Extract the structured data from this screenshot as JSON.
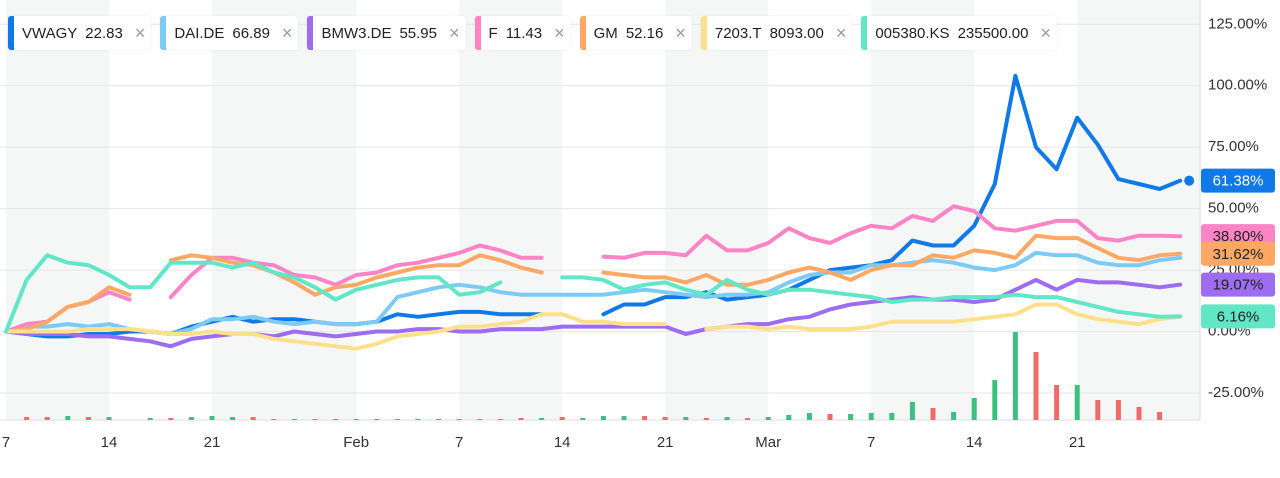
{
  "chart_data": {
    "type": "line",
    "categories": [
      "7",
      null,
      null,
      null,
      null,
      "14",
      null,
      null,
      null,
      null,
      "21",
      null,
      null,
      null,
      null,
      null,
      null,
      "Feb",
      null,
      null,
      null,
      null,
      "7",
      null,
      null,
      null,
      null,
      "14",
      null,
      null,
      null,
      null,
      "21",
      null,
      null,
      null,
      null,
      "Mar",
      null,
      null,
      null,
      null,
      "7",
      null,
      null,
      null,
      null,
      "14",
      null,
      null,
      null,
      null,
      "21",
      null,
      null,
      null,
      null,
      null
    ],
    "ylim": [
      -36,
      130
    ],
    "yticks": [
      {
        "value": -25,
        "label": "-25.00%"
      },
      {
        "value": 0,
        "label": "0.00%"
      },
      {
        "value": 25,
        "label": "25.00%"
      },
      {
        "value": 50,
        "label": "50.00%"
      },
      {
        "value": 75,
        "label": "75.00%"
      },
      {
        "value": 100,
        "label": "100.00%"
      },
      {
        "value": 125,
        "label": "125.00%"
      }
    ],
    "grid": true,
    "series": [
      {
        "name": "VWAGY",
        "price": 22.83,
        "color": "#0f7ae5",
        "end_label": "61.38%",
        "values": [
          0,
          -1,
          -2,
          -2,
          -1,
          -1,
          0,
          0,
          -1,
          2,
          4,
          6,
          4,
          5,
          5,
          4,
          3,
          3,
          4,
          7,
          6,
          7,
          8,
          8,
          7,
          7,
          7,
          null,
          null,
          7,
          11,
          11,
          14,
          14,
          16,
          13,
          14,
          15,
          17,
          21,
          25,
          26,
          27,
          29,
          37,
          35,
          35,
          43,
          60,
          104,
          75,
          66,
          87,
          76,
          62,
          60,
          58,
          61.38
        ]
      },
      {
        "name": "DAI.DE",
        "price": 66.89,
        "color": "#7ccbf5",
        "values": [
          0,
          2,
          2,
          3,
          2,
          3,
          1,
          0,
          -1,
          1,
          5,
          5,
          6,
          4,
          3,
          4,
          3,
          3,
          4,
          14,
          16,
          18,
          19,
          18,
          16,
          15,
          15,
          15,
          15,
          15,
          16,
          17,
          16,
          15,
          14,
          15,
          15,
          16,
          20,
          23,
          24,
          24,
          27,
          27,
          28,
          29,
          28,
          26,
          25,
          27,
          32,
          31,
          31,
          28,
          27,
          27,
          29,
          30
        ]
      },
      {
        "name": "BMW3.DE",
        "price": 55.95,
        "color": "#9d6cf0",
        "end_label": "19.07%",
        "values": [
          0,
          -1,
          -1,
          -1,
          -2,
          -2,
          -3,
          -4,
          -6,
          -3,
          -2,
          -1,
          -1,
          -2,
          0,
          -1,
          -2,
          -1,
          0,
          0,
          1,
          1,
          0,
          0,
          1,
          1,
          1,
          2,
          2,
          2,
          2,
          2,
          2,
          -1,
          1,
          2,
          3,
          3,
          5,
          6,
          9,
          11,
          12,
          13,
          14,
          13,
          13,
          12,
          13,
          17,
          21,
          17,
          21,
          20,
          20,
          19,
          18,
          19.07
        ]
      },
      {
        "name": "F",
        "price": 11.43,
        "color": "#ff84c6",
        "end_label": "38.80%",
        "values": [
          0,
          3,
          4,
          10,
          12,
          16,
          13,
          null,
          14,
          23,
          30,
          30,
          28,
          27,
          23,
          22,
          19,
          23,
          24,
          27,
          28,
          30,
          32,
          35,
          33,
          30,
          30,
          null,
          null,
          30.5,
          30,
          32,
          32,
          31,
          39,
          33,
          33,
          36,
          42,
          38,
          36,
          40,
          43,
          42,
          47,
          45,
          51,
          49,
          42,
          41,
          43,
          45,
          45,
          38,
          37,
          39,
          39,
          38.8
        ]
      },
      {
        "name": "GM",
        "price": 52.16,
        "color": "#ffa866",
        "end_label": "31.62%",
        "values": [
          0,
          1,
          4,
          10,
          12,
          18,
          15,
          null,
          29,
          31,
          30,
          28,
          27,
          24,
          20,
          15,
          18,
          19,
          22,
          24,
          26,
          27,
          27,
          31,
          29,
          26,
          24,
          null,
          null,
          24,
          23,
          22,
          22,
          20,
          23,
          19,
          19,
          21,
          24,
          26,
          24,
          21,
          25,
          27,
          27,
          31,
          30,
          33,
          32,
          30,
          39,
          38,
          38,
          34,
          30,
          29,
          31,
          31.62
        ]
      },
      {
        "name": "7203.T",
        "price": {
          "value": 8093,
          "label": "8093.00"
        },
        "color": "#ffe08a",
        "values": [
          0,
          0,
          0,
          0,
          1,
          1,
          1,
          0,
          -1,
          -1,
          0,
          -1,
          -1,
          -3,
          -4,
          -5,
          -6,
          -7,
          -5,
          -2,
          -1,
          0,
          2,
          2,
          3,
          4,
          7,
          7,
          4,
          4,
          3,
          3,
          3,
          null,
          1,
          2,
          2,
          1,
          2,
          1,
          1,
          1,
          2,
          4,
          4,
          4,
          4,
          5,
          6,
          7,
          11,
          11,
          7,
          5,
          4,
          3,
          5,
          6
        ]
      },
      {
        "name": "005380.KS",
        "price": {
          "value": 235500,
          "label": "235500.00"
        },
        "color": "#62e6c8",
        "end_label": "6.16%",
        "values": [
          0,
          21,
          31,
          28,
          27,
          23,
          18,
          18,
          28,
          28,
          28,
          26,
          28,
          24,
          22,
          18,
          13,
          17,
          19,
          21,
          22,
          22,
          15,
          16,
          20,
          null,
          null,
          22,
          22,
          21,
          17,
          19,
          20,
          17,
          15,
          21,
          17,
          15,
          17,
          17,
          16,
          15,
          14,
          12,
          13,
          13,
          14,
          14,
          14,
          15,
          14,
          14,
          12,
          10,
          8,
          7,
          6,
          6.16
        ]
      }
    ],
    "volume": {
      "values": [
        0,
        3,
        3,
        4,
        3,
        3,
        0,
        2,
        2,
        3,
        4,
        3,
        3,
        1,
        1,
        1,
        1,
        1,
        1,
        1,
        1,
        1,
        1,
        1,
        1,
        2,
        2,
        3,
        2,
        4,
        4,
        4,
        3,
        3,
        2,
        3,
        2,
        3,
        5,
        7,
        6,
        6,
        7,
        7,
        18,
        12,
        8,
        22,
        40,
        88,
        68,
        35,
        35,
        20,
        20,
        13,
        8,
        0
      ],
      "colors": [
        "#f06a6a",
        "#f06a6a",
        "#f06a6a",
        "#3dbf7f",
        "#f06a6a",
        "#3dbf7f",
        "#f06a6a",
        "#3dbf7f",
        "#f06a6a",
        "#3dbf7f",
        "#3dbf7f",
        "#3dbf7f",
        "#f06a6a",
        "#3dbf7f",
        "#f06a6a",
        "#3dbf7f",
        "#f06a6a",
        "#f06a6a",
        "#3dbf7f",
        "#f06a6a",
        "#3dbf7f",
        "#f06a6a",
        "#3dbf7f",
        "#f06a6a",
        "#3dbf7f",
        "#f06a6a",
        "#3dbf7f",
        "#f06a6a",
        "#3dbf7f",
        "#3dbf7f",
        "#3dbf7f",
        "#f06a6a",
        "#f06a6a",
        "#3dbf7f",
        "#f06a6a",
        "#3dbf7f",
        "#f06a6a",
        "#3dbf7f",
        "#3dbf7f",
        "#3dbf7f",
        "#f06a6a",
        "#3dbf7f",
        "#3dbf7f",
        "#3dbf7f",
        "#3dbf7f",
        "#f06a6a",
        "#3dbf7f",
        "#3dbf7f",
        "#3dbf7f",
        "#3dbf7f",
        "#f06a6a",
        "#f06a6a",
        "#3dbf7f",
        "#f06a6a",
        "#f06a6a",
        "#f06a6a",
        "#f06a6a",
        "#f06a6a"
      ]
    }
  }
}
